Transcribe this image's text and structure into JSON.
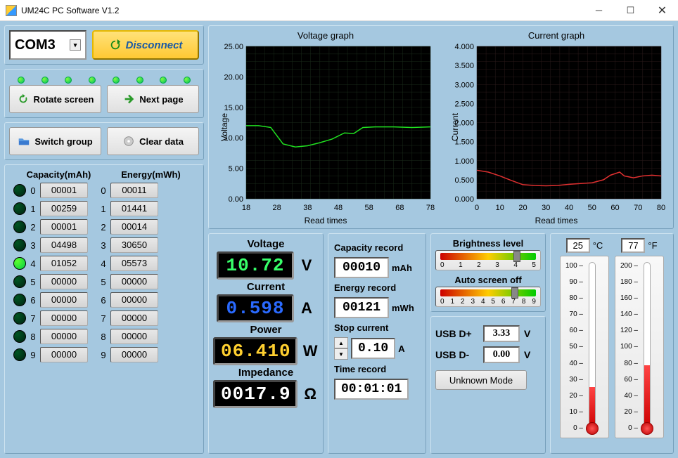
{
  "window": {
    "title": "UM24C PC Software V1.2"
  },
  "connection": {
    "port": "COM3",
    "button_label": "Disconnect"
  },
  "nav": {
    "rotate_label": "Rotate screen",
    "next_label": "Next page",
    "switch_label": "Switch group",
    "clear_label": "Clear data"
  },
  "led_count": 8,
  "slots": {
    "head_capacity": "Capacity(mAh)",
    "head_energy": "Energy(mWh)",
    "rows": [
      {
        "i": 0,
        "cap": "00001",
        "eng": "00011",
        "on": false
      },
      {
        "i": 1,
        "cap": "00259",
        "eng": "01441",
        "on": false
      },
      {
        "i": 2,
        "cap": "00001",
        "eng": "00014",
        "on": false
      },
      {
        "i": 3,
        "cap": "04498",
        "eng": "30650",
        "on": false
      },
      {
        "i": 4,
        "cap": "01052",
        "eng": "05573",
        "on": true
      },
      {
        "i": 5,
        "cap": "00000",
        "eng": "00000",
        "on": false
      },
      {
        "i": 6,
        "cap": "00000",
        "eng": "00000",
        "on": false
      },
      {
        "i": 7,
        "cap": "00000",
        "eng": "00000",
        "on": false
      },
      {
        "i": 8,
        "cap": "00000",
        "eng": "00000",
        "on": false
      },
      {
        "i": 9,
        "cap": "00000",
        "eng": "00000",
        "on": false
      }
    ]
  },
  "voltage_chart": {
    "title": "Voltage graph",
    "ylabel": "Voltage",
    "xlabel": "Read times",
    "ylim": [
      0,
      25
    ],
    "ytick_step": 5,
    "xlim": [
      18,
      78
    ],
    "xtick_step": 10,
    "bg": "#000000",
    "grid": "#1a2a1a",
    "line_color": "#20e020",
    "line_width": 1.5,
    "series": [
      [
        18,
        12.0
      ],
      [
        22,
        12.0
      ],
      [
        26,
        11.7
      ],
      [
        30,
        9.0
      ],
      [
        34,
        8.5
      ],
      [
        38,
        8.7
      ],
      [
        42,
        9.2
      ],
      [
        46,
        9.8
      ],
      [
        50,
        10.8
      ],
      [
        53,
        10.7
      ],
      [
        56,
        11.7
      ],
      [
        60,
        11.8
      ],
      [
        66,
        11.8
      ],
      [
        72,
        11.7
      ],
      [
        78,
        11.8
      ]
    ]
  },
  "current_chart": {
    "title": "Current graph",
    "ylabel": "Current",
    "xlabel": "Read times",
    "ylim": [
      0,
      4
    ],
    "ytick_step": 0.5,
    "xlim": [
      0,
      80
    ],
    "xtick_step": 10,
    "bg": "#000000",
    "grid": "#2a1a1a",
    "line_color": "#e03030",
    "line_width": 1.5,
    "series": [
      [
        0,
        0.75
      ],
      [
        5,
        0.7
      ],
      [
        10,
        0.6
      ],
      [
        15,
        0.48
      ],
      [
        20,
        0.37
      ],
      [
        25,
        0.35
      ],
      [
        30,
        0.34
      ],
      [
        35,
        0.35
      ],
      [
        40,
        0.38
      ],
      [
        45,
        0.4
      ],
      [
        50,
        0.42
      ],
      [
        55,
        0.5
      ],
      [
        58,
        0.62
      ],
      [
        62,
        0.7
      ],
      [
        64,
        0.6
      ],
      [
        68,
        0.55
      ],
      [
        72,
        0.6
      ],
      [
        76,
        0.62
      ],
      [
        80,
        0.6
      ]
    ]
  },
  "lcd": {
    "voltage": {
      "label": "Voltage",
      "value": "10.72",
      "unit": "V",
      "color": "#38ff6a"
    },
    "current": {
      "label": "Current",
      "value": "0.598",
      "unit": "A",
      "color": "#2a6aff"
    },
    "power": {
      "label": "Power",
      "value": "06.410",
      "unit": "W",
      "color": "#ffd030"
    },
    "imped": {
      "label": "Impedance",
      "value": "0017.9",
      "unit": "Ω",
      "color": "#ffffff"
    }
  },
  "records": {
    "capacity": {
      "label": "Capacity record",
      "value": "00010",
      "unit": "mAh"
    },
    "energy": {
      "label": "Energy record",
      "value": "00121",
      "unit": "mWh"
    },
    "stop": {
      "label": "Stop current",
      "value": "0.10",
      "unit": "A"
    },
    "time": {
      "label": "Time record",
      "value": "00:01:01"
    }
  },
  "controls": {
    "brightness": {
      "label": "Brightness level",
      "min": 0,
      "max": 5,
      "value": 4,
      "ticks": [
        "0",
        "1",
        "2",
        "3",
        "4",
        "5"
      ]
    },
    "screenoff": {
      "label": "Auto screen off",
      "min": 0,
      "max": 9,
      "value": 7,
      "ticks": [
        "0",
        "1",
        "2",
        "3",
        "4",
        "5",
        "6",
        "7",
        "8",
        "9"
      ]
    },
    "usb_dp": {
      "label": "USB D+",
      "value": "3.33",
      "unit": "V"
    },
    "usb_dm": {
      "label": "USB D-",
      "value": "0.00",
      "unit": "V"
    },
    "mode_label": "Unknown Mode"
  },
  "temps": {
    "c": {
      "value": "25",
      "unit": "°C",
      "scale_min": 0,
      "scale_max": 100,
      "step": 10,
      "fill_pct": 25
    },
    "f": {
      "value": "77",
      "unit": "°F",
      "scale_min": 0,
      "scale_max": 200,
      "step": 20,
      "fill_pct": 38
    }
  }
}
